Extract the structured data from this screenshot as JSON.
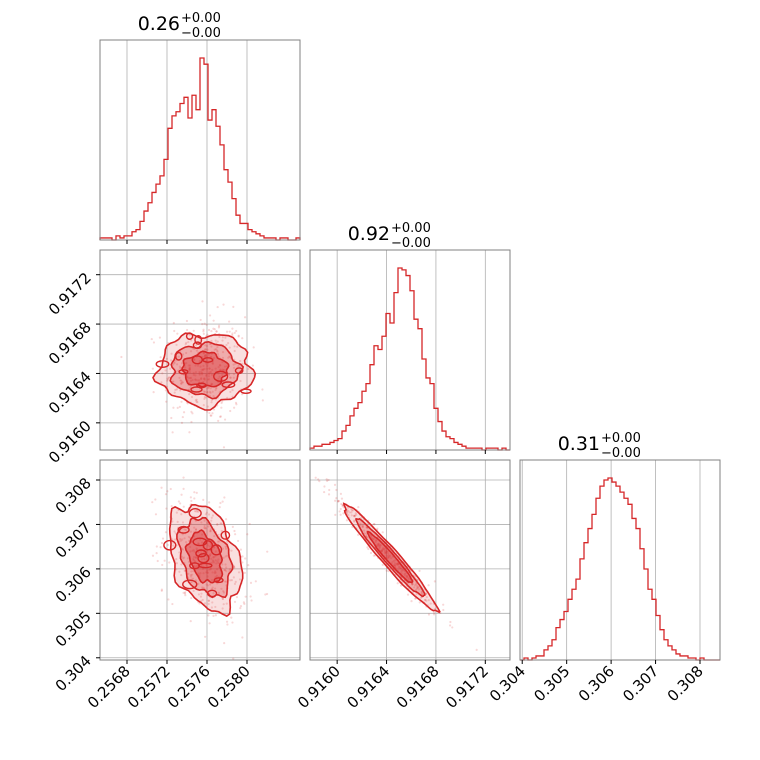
{
  "chart_data": {
    "type": "corner",
    "color": "#d62728",
    "grid": true,
    "titles": [
      {
        "value": "0.26",
        "plus": "+0.00",
        "minus": "−0.00"
      },
      {
        "value": "0.92",
        "plus": "+0.00",
        "minus": "−0.00"
      },
      {
        "value": "0.31",
        "plus": "+0.00",
        "minus": "−0.00"
      }
    ],
    "params": [
      {
        "range": [
          0.25653,
          0.25853
        ],
        "ticks": [
          0.2568,
          0.2572,
          0.2576,
          0.258
        ],
        "tick_labels": [
          "0.2568",
          "0.2572",
          "0.2576",
          "0.2580"
        ],
        "mean": 0.25758,
        "sd": 0.00018
      },
      {
        "range": [
          0.91578,
          0.9174
        ],
        "ticks": [
          0.916,
          0.9164,
          0.9168,
          0.9172
        ],
        "tick_labels": [
          "0.9160",
          "0.9164",
          "0.9168",
          "0.9172"
        ],
        "mean": 0.91643,
        "sd": 0.00019
      },
      {
        "range": [
          0.30395,
          0.30845
        ],
        "ticks": [
          0.304,
          0.305,
          0.306,
          0.307,
          0.308
        ],
        "tick_labels": [
          "0.304",
          "0.305",
          "0.306",
          "0.307",
          "0.308"
        ],
        "mean": 0.30625,
        "sd": 0.0006
      }
    ],
    "hist1d": [
      {
        "bins": [
          0.25653,
          0.25853
        ],
        "counts": [
          1,
          1,
          1,
          0,
          2,
          1,
          2,
          2,
          4,
          5,
          9,
          14,
          18,
          23,
          27,
          31,
          39,
          54,
          60,
          62,
          66,
          69,
          59,
          70,
          63,
          88,
          85,
          58,
          63,
          55,
          46,
          34,
          28,
          20,
          12,
          8,
          8,
          5,
          4,
          3,
          2,
          1,
          1,
          1,
          0,
          1,
          1,
          0,
          0,
          1
        ]
      },
      {
        "bins": [
          0.91578,
          0.9174
        ],
        "counts": [
          1,
          2,
          2,
          3,
          3,
          4,
          5,
          6,
          10,
          13,
          18,
          22,
          25,
          31,
          35,
          45,
          55,
          53,
          60,
          72,
          67,
          83,
          96,
          95,
          92,
          84,
          69,
          64,
          48,
          38,
          35,
          22,
          15,
          10,
          7,
          6,
          4,
          3,
          2,
          1,
          1,
          1,
          1,
          0,
          1,
          1,
          1,
          0,
          1,
          0
        ]
      },
      {
        "bins": [
          0.30395,
          0.30845
        ],
        "counts": [
          0,
          1,
          0,
          1,
          2,
          2,
          5,
          7,
          10,
          16,
          20,
          24,
          30,
          35,
          40,
          50,
          58,
          65,
          72,
          80,
          86,
          89,
          90,
          88,
          86,
          83,
          80,
          77,
          70,
          65,
          55,
          45,
          35,
          30,
          22,
          15,
          10,
          7,
          5,
          3,
          2,
          2,
          1,
          1,
          0,
          1,
          0,
          0,
          0,
          0
        ]
      }
    ],
    "hist2d": [
      {
        "x": 0,
        "y": 1,
        "rho": 0.0
      },
      {
        "x": 0,
        "y": 2,
        "rho": -0.35
      },
      {
        "x": 1,
        "y": 2,
        "rho": -0.97
      }
    ]
  }
}
